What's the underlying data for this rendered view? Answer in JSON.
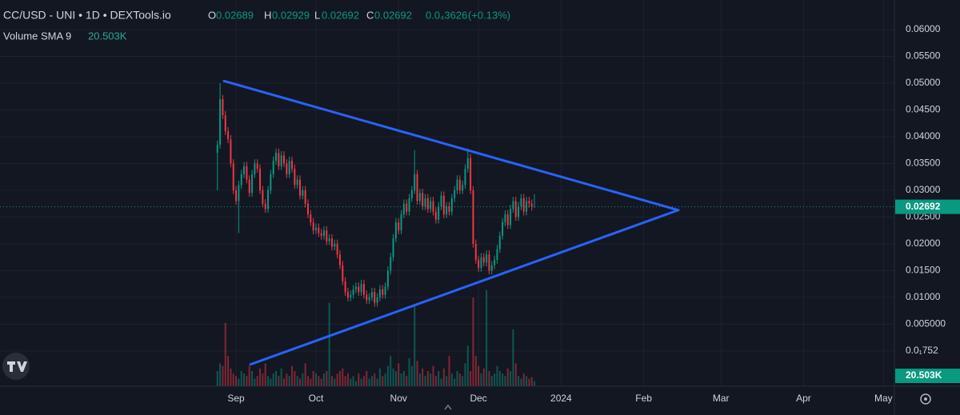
{
  "chart_data": {
    "type": "candlestick",
    "title": "CC/USD - UNI • 1D • DEXTools.io",
    "ohlc_letters": [
      "O",
      "H",
      "L",
      "C"
    ],
    "change_label": "0.0₄3626",
    "change_percent_label": "(+0.13%)",
    "volume_sma": {
      "label": "Volume SMA 9",
      "value": 20.503,
      "value_label": "20.503K"
    },
    "up_color": "#089981",
    "down_color": "#f23645",
    "grid": true,
    "xlim": [
      -88.6,
      247.1
    ],
    "xticks": [
      {
        "value": 0,
        "label": "Sep"
      },
      {
        "value": 30,
        "label": "Oct"
      },
      {
        "value": 61,
        "label": "Nov"
      },
      {
        "value": 91,
        "label": "Dec"
      },
      {
        "value": 122,
        "label": "2024"
      },
      {
        "value": 153,
        "label": "Feb"
      },
      {
        "value": 182,
        "label": "Mar"
      },
      {
        "value": 213,
        "label": "Apr"
      },
      {
        "value": 243,
        "label": "May"
      }
    ],
    "ylim": [
      -0.00657,
      0.06552
    ],
    "yticks": [
      {
        "value": 0.06,
        "label": "0.06000"
      },
      {
        "value": 0.055,
        "label": "0.05500"
      },
      {
        "value": 0.05,
        "label": "0.05000"
      },
      {
        "value": 0.045,
        "label": "0.04500"
      },
      {
        "value": 0.04,
        "label": "0.04000"
      },
      {
        "value": 0.035,
        "label": "0.03500"
      },
      {
        "value": 0.03,
        "label": "0.03000"
      },
      {
        "value": 0.025,
        "label": "0.02500"
      },
      {
        "value": 0.02,
        "label": "0.02000"
      },
      {
        "value": 0.015,
        "label": "0.01500"
      },
      {
        "value": 0.01,
        "label": "0.01000"
      },
      {
        "value": 0.005,
        "label": "0.005000"
      },
      {
        "value": 0,
        "label": "0.0₁752"
      }
    ],
    "vlim": [
      0,
      300
    ],
    "x": [
      -7,
      -6,
      -5,
      -4,
      -3,
      -2,
      -1,
      0,
      1,
      2,
      3,
      4,
      5,
      6,
      7,
      8,
      9,
      10,
      11,
      12,
      13,
      14,
      15,
      16,
      17,
      18,
      19,
      20,
      21,
      22,
      23,
      24,
      25,
      26,
      27,
      28,
      29,
      30,
      31,
      32,
      33,
      34,
      35,
      36,
      37,
      38,
      39,
      40,
      41,
      42,
      43,
      44,
      45,
      46,
      47,
      48,
      49,
      50,
      51,
      52,
      53,
      54,
      55,
      56,
      57,
      58,
      59,
      60,
      61,
      62,
      63,
      64,
      65,
      66,
      67,
      68,
      69,
      70,
      71,
      72,
      73,
      74,
      75,
      76,
      77,
      78,
      79,
      80,
      81,
      82,
      83,
      84,
      85,
      86,
      87,
      88,
      89,
      90,
      91,
      92,
      93,
      94,
      95,
      96,
      97,
      98,
      99,
      100,
      101,
      102,
      103,
      104,
      105,
      106,
      107,
      108,
      109,
      110,
      111,
      112
    ],
    "candles": [
      [
        0.037,
        0.0393,
        0.03,
        0.0385
      ],
      [
        0.0385,
        0.05,
        0.0378,
        0.047
      ],
      [
        0.047,
        0.0478,
        0.0433,
        0.044
      ],
      [
        0.044,
        0.0448,
        0.0403,
        0.041
      ],
      [
        0.041,
        0.0418,
        0.0388,
        0.0395
      ],
      [
        0.0395,
        0.0403,
        0.0343,
        0.035
      ],
      [
        0.035,
        0.0358,
        0.0293,
        0.03
      ],
      [
        0.03,
        0.0308,
        0.0273,
        0.028
      ],
      [
        0.028,
        0.0318,
        0.022,
        0.031
      ],
      [
        0.031,
        0.0338,
        0.0303,
        0.033
      ],
      [
        0.033,
        0.0353,
        0.0323,
        0.0345
      ],
      [
        0.0345,
        0.0353,
        0.0313,
        0.032
      ],
      [
        0.032,
        0.0328,
        0.0288,
        0.0295
      ],
      [
        0.0295,
        0.0338,
        0.0288,
        0.033
      ],
      [
        0.033,
        0.0358,
        0.0323,
        0.035
      ],
      [
        0.035,
        0.0358,
        0.0333,
        0.034
      ],
      [
        0.034,
        0.0348,
        0.0293,
        0.03
      ],
      [
        0.03,
        0.0308,
        0.0268,
        0.0275
      ],
      [
        0.0275,
        0.0283,
        0.0258,
        0.0265
      ],
      [
        0.0265,
        0.0308,
        0.0258,
        0.03
      ],
      [
        0.03,
        0.0338,
        0.0293,
        0.033
      ],
      [
        0.033,
        0.0363,
        0.0323,
        0.0355
      ],
      [
        0.0355,
        0.0378,
        0.0348,
        0.037
      ],
      [
        0.037,
        0.0378,
        0.0338,
        0.0345
      ],
      [
        0.0345,
        0.0373,
        0.0338,
        0.0365
      ],
      [
        0.0365,
        0.0373,
        0.0343,
        0.035
      ],
      [
        0.035,
        0.0358,
        0.0323,
        0.033
      ],
      [
        0.033,
        0.0363,
        0.0323,
        0.0355
      ],
      [
        0.0355,
        0.0363,
        0.0333,
        0.034
      ],
      [
        0.034,
        0.0348,
        0.0303,
        0.031
      ],
      [
        0.031,
        0.0328,
        0.0303,
        0.032
      ],
      [
        0.032,
        0.0328,
        0.0283,
        0.029
      ],
      [
        0.029,
        0.0308,
        0.0283,
        0.03
      ],
      [
        0.03,
        0.0308,
        0.0268,
        0.0275
      ],
      [
        0.0275,
        0.0283,
        0.0248,
        0.0255
      ],
      [
        0.0255,
        0.0263,
        0.0233,
        0.024
      ],
      [
        0.024,
        0.0248,
        0.0218,
        0.0225
      ],
      [
        0.0225,
        0.0238,
        0.0218,
        0.023
      ],
      [
        0.023,
        0.0238,
        0.0213,
        0.022
      ],
      [
        0.022,
        0.0228,
        0.0208,
        0.0215
      ],
      [
        0.0215,
        0.0233,
        0.0208,
        0.0225
      ],
      [
        0.0225,
        0.0233,
        0.0198,
        0.0205
      ],
      [
        0.0205,
        0.0218,
        0.0198,
        0.021
      ],
      [
        0.021,
        0.0218,
        0.0188,
        0.0195
      ],
      [
        0.0195,
        0.0208,
        0.0188,
        0.02
      ],
      [
        0.02,
        0.0208,
        0.0173,
        0.018
      ],
      [
        0.018,
        0.0188,
        0.0153,
        0.016
      ],
      [
        0.016,
        0.0168,
        0.0123,
        0.013
      ],
      [
        0.013,
        0.0138,
        0.0103,
        0.011
      ],
      [
        0.011,
        0.0118,
        0.0093,
        0.01
      ],
      [
        0.01,
        0.0113,
        0.0093,
        0.0105
      ],
      [
        0.0105,
        0.0123,
        0.0098,
        0.0115
      ],
      [
        0.0115,
        0.0128,
        0.0108,
        0.012
      ],
      [
        0.012,
        0.0128,
        0.0103,
        0.011
      ],
      [
        0.011,
        0.0133,
        0.0103,
        0.0125
      ],
      [
        0.0125,
        0.0133,
        0.0098,
        0.0105
      ],
      [
        0.0105,
        0.0113,
        0.0088,
        0.0095
      ],
      [
        0.0095,
        0.0108,
        0.0088,
        0.01
      ],
      [
        0.01,
        0.0118,
        0.0093,
        0.011
      ],
      [
        0.011,
        0.0118,
        0.0083,
        0.009
      ],
      [
        0.009,
        0.0108,
        0.0083,
        0.01
      ],
      [
        0.01,
        0.0123,
        0.0093,
        0.0115
      ],
      [
        0.0115,
        0.0123,
        0.0098,
        0.0105
      ],
      [
        0.0105,
        0.0128,
        0.0098,
        0.012
      ],
      [
        0.012,
        0.0158,
        0.0113,
        0.015
      ],
      [
        0.015,
        0.0183,
        0.0143,
        0.0175
      ],
      [
        0.0175,
        0.0218,
        0.0168,
        0.021
      ],
      [
        0.021,
        0.0248,
        0.0203,
        0.024
      ],
      [
        0.024,
        0.0248,
        0.0218,
        0.0225
      ],
      [
        0.0225,
        0.0263,
        0.0218,
        0.0255
      ],
      [
        0.0255,
        0.0283,
        0.0248,
        0.0275
      ],
      [
        0.0275,
        0.0283,
        0.0253,
        0.026
      ],
      [
        0.026,
        0.0293,
        0.0253,
        0.0285
      ],
      [
        0.0285,
        0.0308,
        0.0278,
        0.03
      ],
      [
        0.03,
        0.0375,
        0.0293,
        0.033
      ],
      [
        0.033,
        0.0338,
        0.0273,
        0.028
      ],
      [
        0.028,
        0.0303,
        0.0273,
        0.0295
      ],
      [
        0.0295,
        0.0303,
        0.0263,
        0.027
      ],
      [
        0.027,
        0.0293,
        0.0263,
        0.0285
      ],
      [
        0.0285,
        0.0293,
        0.0258,
        0.0265
      ],
      [
        0.0265,
        0.0288,
        0.0258,
        0.028
      ],
      [
        0.028,
        0.0288,
        0.0253,
        0.026
      ],
      [
        0.026,
        0.0268,
        0.0238,
        0.0245
      ],
      [
        0.0245,
        0.0278,
        0.0238,
        0.027
      ],
      [
        0.027,
        0.0298,
        0.0263,
        0.029
      ],
      [
        0.029,
        0.0298,
        0.0248,
        0.0255
      ],
      [
        0.0255,
        0.0278,
        0.0248,
        0.027
      ],
      [
        0.027,
        0.0278,
        0.0253,
        0.026
      ],
      [
        0.026,
        0.0293,
        0.0253,
        0.0285
      ],
      [
        0.0285,
        0.0308,
        0.0278,
        0.03
      ],
      [
        0.03,
        0.0328,
        0.0293,
        0.032
      ],
      [
        0.032,
        0.0328,
        0.0293,
        0.03
      ],
      [
        0.03,
        0.0318,
        0.0293,
        0.031
      ],
      [
        0.031,
        0.0348,
        0.0303,
        0.034
      ],
      [
        0.034,
        0.0378,
        0.0333,
        0.036
      ],
      [
        0.036,
        0.0368,
        0.0293,
        0.03
      ],
      [
        0.03,
        0.0308,
        0.0193,
        0.02
      ],
      [
        0.02,
        0.0208,
        0.0163,
        0.017
      ],
      [
        0.017,
        0.0178,
        0.0148,
        0.0155
      ],
      [
        0.0155,
        0.0183,
        0.0148,
        0.0175
      ],
      [
        0.0175,
        0.0183,
        0.0158,
        0.0165
      ],
      [
        0.0165,
        0.0188,
        0.0158,
        0.018
      ],
      [
        0.018,
        0.0188,
        0.0143,
        0.015
      ],
      [
        0.015,
        0.0168,
        0.0143,
        0.016
      ],
      [
        0.016,
        0.0178,
        0.0153,
        0.017
      ],
      [
        0.017,
        0.0198,
        0.0163,
        0.019
      ],
      [
        0.019,
        0.0223,
        0.0183,
        0.0215
      ],
      [
        0.0215,
        0.0248,
        0.0208,
        0.024
      ],
      [
        0.024,
        0.0263,
        0.0233,
        0.0255
      ],
      [
        0.0255,
        0.0263,
        0.0228,
        0.0235
      ],
      [
        0.0235,
        0.0273,
        0.0228,
        0.0265
      ],
      [
        0.0265,
        0.0288,
        0.0258,
        0.028
      ],
      [
        0.028,
        0.0288,
        0.0243,
        0.025
      ],
      [
        0.025,
        0.0278,
        0.0243,
        0.027
      ],
      [
        0.027,
        0.0293,
        0.0263,
        0.0285
      ],
      [
        0.0285,
        0.0293,
        0.0253,
        0.026
      ],
      [
        0.026,
        0.0288,
        0.0253,
        0.028
      ],
      [
        0.028,
        0.0288,
        0.0268,
        0.0275
      ],
      [
        0.0275,
        0.0283,
        0.0262,
        0.02689
      ],
      [
        0.02689,
        0.02929,
        0.02692,
        0.02692
      ]
    ],
    "volumes": [
      30,
      45,
      40,
      125,
      60,
      35,
      25,
      20,
      15,
      30,
      25,
      20,
      40,
      30,
      15,
      20,
      35,
      25,
      45,
      20,
      15,
      25,
      30,
      20,
      35,
      15,
      25,
      20,
      40,
      30,
      20,
      15,
      25,
      45,
      20,
      15,
      30,
      25,
      20,
      15,
      25,
      30,
      165,
      20,
      15,
      25,
      30,
      35,
      20,
      25,
      15,
      20,
      10,
      25,
      15,
      20,
      30,
      15,
      20,
      25,
      15,
      35,
      20,
      25,
      40,
      60,
      35,
      30,
      45,
      25,
      30,
      20,
      55,
      40,
      158,
      50,
      25,
      35,
      20,
      30,
      25,
      40,
      20,
      30,
      15,
      35,
      20,
      60,
      25,
      15,
      30,
      25,
      20,
      45,
      80,
      30,
      175,
      60,
      40,
      25,
      35,
      190,
      30,
      20,
      25,
      40,
      30,
      25,
      20,
      35,
      30,
      112,
      45,
      20,
      15,
      25,
      20,
      15,
      18,
      10
    ],
    "trendlines": [
      {
        "color": "#2962ff",
        "points": [
          [
            -4.5,
            0.0504
          ],
          [
            166,
            0.0263
          ]
        ]
      },
      {
        "color": "#2962ff",
        "points": [
          [
            5.4,
            -0.0025
          ],
          [
            166,
            0.0263
          ]
        ]
      }
    ]
  }
}
